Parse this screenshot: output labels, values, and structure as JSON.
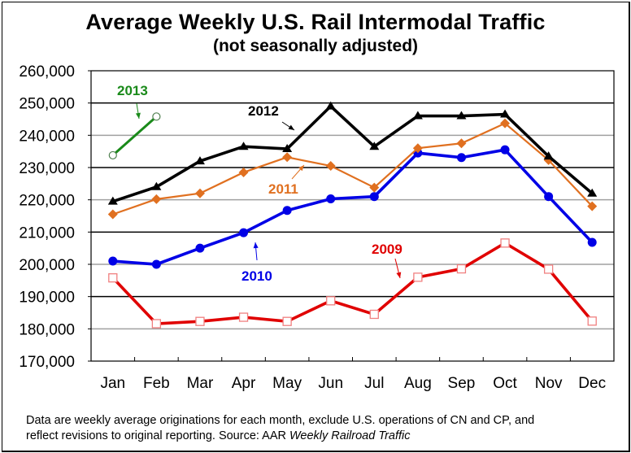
{
  "chart_data": {
    "type": "line",
    "title": "Average Weekly U.S. Rail Intermodal Traffic",
    "subtitle": "(not seasonally adjusted)",
    "xlabel": "",
    "ylabel": "",
    "categories": [
      "Jan",
      "Feb",
      "Mar",
      "Apr",
      "May",
      "Jun",
      "Jul",
      "Aug",
      "Sep",
      "Oct",
      "Nov",
      "Dec"
    ],
    "ylim": [
      170000,
      260000
    ],
    "yticks": [
      170000,
      180000,
      190000,
      200000,
      210000,
      220000,
      230000,
      240000,
      250000,
      260000
    ],
    "ytick_labels": [
      "170,000",
      "180,000",
      "190,000",
      "200,000",
      "210,000",
      "220,000",
      "230,000",
      "240,000",
      "250,000",
      "260,000"
    ],
    "grid": true,
    "legend": "none (inline annotations)",
    "series": [
      {
        "name": "2009",
        "color": "#e00000",
        "marker": "open-square",
        "values": [
          195800,
          181600,
          182300,
          183600,
          182300,
          188700,
          184500,
          196000,
          198600,
          206600,
          198500,
          182400
        ]
      },
      {
        "name": "2010",
        "color": "#0000e6",
        "marker": "circle",
        "values": [
          201000,
          200000,
          205000,
          209800,
          216700,
          220300,
          221000,
          234500,
          233100,
          235500,
          221000,
          206800
        ]
      },
      {
        "name": "2011",
        "color": "#e07020",
        "marker": "diamond",
        "values": [
          215500,
          220200,
          222000,
          228500,
          233200,
          230500,
          223800,
          236000,
          237500,
          243700,
          232300,
          218000
        ]
      },
      {
        "name": "2012",
        "color": "#000000",
        "marker": "triangle",
        "values": [
          219500,
          224000,
          232000,
          236500,
          235800,
          249000,
          236500,
          246000,
          246000,
          246500,
          233500,
          222000
        ]
      },
      {
        "name": "2013",
        "color": "#1a8a1a",
        "marker": "open-circle",
        "values": [
          233800,
          245800,
          null,
          null,
          null,
          null,
          null,
          null,
          null,
          null,
          null,
          null
        ]
      }
    ],
    "annotations": [
      {
        "text": "2013",
        "series": "2013"
      },
      {
        "text": "2012",
        "series": "2012"
      },
      {
        "text": "2011",
        "series": "2011"
      },
      {
        "text": "2010",
        "series": "2010"
      },
      {
        "text": "2009",
        "series": "2009"
      }
    ]
  },
  "footnote": {
    "line1": "Data are weekly average originations for each month, exclude U.S. operations of CN and CP, and",
    "line2_plain": "reflect revisions to original reporting.  Source: AAR ",
    "line2_italic": "Weekly Railroad Traffic"
  }
}
